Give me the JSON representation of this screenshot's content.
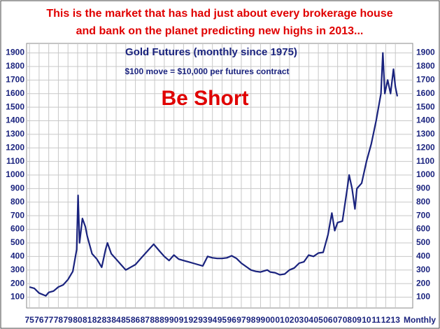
{
  "chart_data": {
    "type": "line",
    "title": [
      "This is the market that has had just about every brokerage house",
      "and bank on the planet predicting new highs in 2013..."
    ],
    "subtitle": "Gold Futures (monthly since 1975)",
    "note": "$100 move = $10,000 per futures contract",
    "annotation": "Be Short",
    "x_label": "Monthly",
    "color": "#1a237e",
    "grid": true,
    "xlim": [
      1974.7,
      2014.8
    ],
    "ylim": [
      20,
      1970
    ],
    "yticks": [
      100,
      200,
      300,
      400,
      500,
      600,
      700,
      800,
      900,
      1000,
      1100,
      1200,
      1300,
      1400,
      1500,
      1600,
      1700,
      1800,
      1900
    ],
    "xticks": [
      {
        "value": 1975,
        "label": "75"
      },
      {
        "value": 1976,
        "label": "76"
      },
      {
        "value": 1977,
        "label": "77"
      },
      {
        "value": 1978,
        "label": "78"
      },
      {
        "value": 1979,
        "label": "79"
      },
      {
        "value": 1980,
        "label": "80"
      },
      {
        "value": 1981,
        "label": "81"
      },
      {
        "value": 1982,
        "label": "82"
      },
      {
        "value": 1983,
        "label": "83"
      },
      {
        "value": 1984,
        "label": "84"
      },
      {
        "value": 1985,
        "label": "85"
      },
      {
        "value": 1986,
        "label": "86"
      },
      {
        "value": 1987,
        "label": "87"
      },
      {
        "value": 1988,
        "label": "88"
      },
      {
        "value": 1989,
        "label": "89"
      },
      {
        "value": 1990,
        "label": "90"
      },
      {
        "value": 1991,
        "label": "91"
      },
      {
        "value": 1992,
        "label": "92"
      },
      {
        "value": 1993,
        "label": "93"
      },
      {
        "value": 1994,
        "label": "94"
      },
      {
        "value": 1995,
        "label": "95"
      },
      {
        "value": 1996,
        "label": "96"
      },
      {
        "value": 1997,
        "label": "97"
      },
      {
        "value": 1998,
        "label": "98"
      },
      {
        "value": 1999,
        "label": "99"
      },
      {
        "value": 2000,
        "label": "00"
      },
      {
        "value": 2001,
        "label": "01"
      },
      {
        "value": 2002,
        "label": "02"
      },
      {
        "value": 2003,
        "label": "03"
      },
      {
        "value": 2004,
        "label": "04"
      },
      {
        "value": 2005,
        "label": "05"
      },
      {
        "value": 2006,
        "label": "06"
      },
      {
        "value": 2007,
        "label": "07"
      },
      {
        "value": 2008,
        "label": "08"
      },
      {
        "value": 2009,
        "label": "09"
      },
      {
        "value": 2010,
        "label": "10"
      },
      {
        "value": 2011,
        "label": "11"
      },
      {
        "value": 2012,
        "label": "12"
      },
      {
        "value": 2013,
        "label": "13"
      }
    ],
    "x": [
      1975,
      1975.5,
      1976,
      1976.7,
      1977,
      1977.5,
      1978,
      1978.5,
      1979,
      1979.5,
      1979.9,
      1980.05,
      1980.2,
      1980.5,
      1980.8,
      1981,
      1981.5,
      1982,
      1982.5,
      1982.9,
      1983.1,
      1983.5,
      1984,
      1984.5,
      1985,
      1985.5,
      1986,
      1986.5,
      1987,
      1987.9,
      1988.5,
      1989,
      1989.5,
      1990,
      1990.5,
      1991,
      1991.5,
      1992,
      1992.5,
      1993,
      1993.5,
      1994,
      1994.5,
      1995,
      1995.5,
      1996,
      1996.5,
      1997,
      1997.5,
      1998,
      1998.5,
      1999,
      1999.7,
      2000,
      2000.5,
      2001,
      2001.5,
      2002,
      2002.5,
      2003,
      2003.5,
      2004,
      2004.5,
      2005,
      2005.5,
      2006,
      2006.4,
      2006.7,
      2007,
      2007.5,
      2008,
      2008.2,
      2008.5,
      2008.8,
      2009,
      2009.5,
      2010,
      2010.5,
      2011,
      2011.5,
      2011.7,
      2011.9,
      2012.2,
      2012.5,
      2012.8,
      2013,
      2013.2
    ],
    "values": [
      175,
      165,
      130,
      110,
      135,
      145,
      175,
      190,
      230,
      290,
      450,
      850,
      500,
      680,
      620,
      550,
      420,
      380,
      320,
      450,
      500,
      420,
      380,
      340,
      300,
      320,
      340,
      380,
      420,
      490,
      440,
      400,
      370,
      410,
      380,
      370,
      360,
      350,
      340,
      330,
      400,
      390,
      385,
      385,
      390,
      405,
      385,
      350,
      325,
      300,
      290,
      285,
      300,
      285,
      280,
      265,
      270,
      300,
      315,
      350,
      360,
      410,
      400,
      425,
      430,
      560,
      720,
      590,
      650,
      660,
      900,
      1000,
      900,
      750,
      900,
      940,
      1100,
      1230,
      1400,
      1600,
      1900,
      1600,
      1700,
      1600,
      1780,
      1650,
      1580
    ]
  }
}
